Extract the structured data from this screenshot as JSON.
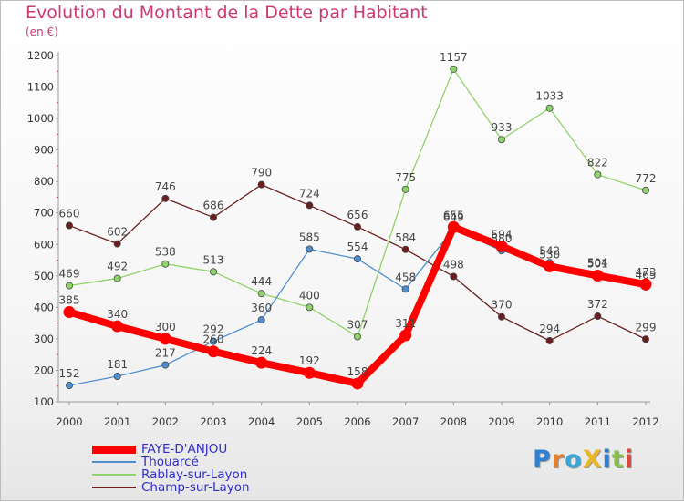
{
  "title": "Evolution du Montant de la Dette par Habitant",
  "subtitle": "(en €)",
  "logo": {
    "text": "ProXiti",
    "colors": [
      "#2f80d0",
      "#e8802a",
      "#35a7d8",
      "#e8b82a",
      "#2f80d0",
      "#8bc34a",
      "#d9473c"
    ]
  },
  "chart_data": {
    "type": "line",
    "title": "Evolution du Montant de la Dette par Habitant",
    "ylabel": "(en €)",
    "xlabel": "",
    "ylim": [
      100,
      1200
    ],
    "yticks": [
      100,
      200,
      300,
      400,
      500,
      600,
      700,
      800,
      900,
      1000,
      1100,
      1200
    ],
    "categories": [
      "2000",
      "2001",
      "2002",
      "2003",
      "2004",
      "2005",
      "2006",
      "2007",
      "2008",
      "2009",
      "2010",
      "2011",
      "2012"
    ],
    "legend_position": "bottom-left",
    "series": [
      {
        "name": "Champ-sur-Layon",
        "color": "#6b1e1e",
        "values": [
          660,
          602,
          746,
          686,
          790,
          724,
          656,
          584,
          498,
          370,
          294,
          372,
          299
        ],
        "labels": [
          "660",
          "602",
          "746",
          "686",
          "790",
          "724",
          "656",
          "584",
          "498",
          "370",
          "294",
          "372",
          "299"
        ]
      },
      {
        "name": "Rablay-sur-Layon",
        "color": "#8fd46a",
        "values": [
          469,
          492,
          538,
          513,
          444,
          400,
          307,
          775,
          1157,
          933,
          1033,
          822,
          772
        ],
        "labels": [
          "469",
          "492",
          "538",
          "513",
          "444",
          "400",
          "307",
          "775",
          "1157",
          "933",
          "1033",
          "822",
          "772"
        ]
      },
      {
        "name": "Thouarcé",
        "color": "#4f8fd0",
        "values": [
          152,
          181,
          217,
          292,
          360,
          585,
          554,
          458,
          649,
          580,
          542,
          504,
          465
        ],
        "labels": [
          "152",
          "181",
          "217",
          "292",
          "360",
          "585",
          "554",
          "458",
          "649",
          "580",
          "542",
          "504",
          "465"
        ]
      },
      {
        "name": "FAYE-D'ANJOU",
        "color": "#ff0000",
        "values": [
          385,
          340,
          300,
          260,
          224,
          192,
          158,
          311,
          655,
          594,
          530,
          501,
          473
        ],
        "labels": [
          "385",
          "340",
          "300",
          "260",
          "224",
          "192",
          "158",
          "311",
          "655",
          "594",
          "530",
          "501",
          "473"
        ]
      }
    ]
  }
}
